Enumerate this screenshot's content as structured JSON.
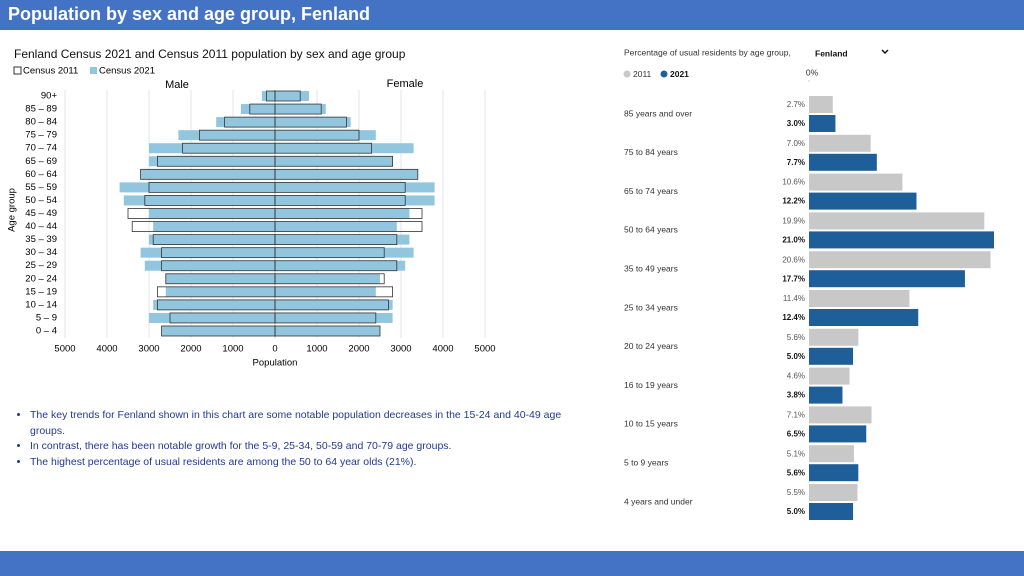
{
  "title": "Population by sex and age group, Fenland",
  "chart_data": [
    {
      "type": "pyramid",
      "title": "Fenland Census 2021 and Census 2011 population by sex and age group",
      "sides": [
        "Male",
        "Female"
      ],
      "categories": [
        "90+",
        "85 – 89",
        "80 – 84",
        "75 – 79",
        "70 – 74",
        "65 – 69",
        "60 – 64",
        "55 – 59",
        "50 – 54",
        "45 – 49",
        "40 – 44",
        "35 – 39",
        "30 – 34",
        "25 – 29",
        "20 – 24",
        "15 – 19",
        "10 – 14",
        "5 – 9",
        "0 – 4"
      ],
      "series": [
        {
          "name": "Census 2011",
          "color": "#333333",
          "male": [
            200,
            600,
            1200,
            1800,
            2200,
            2800,
            3200,
            3000,
            3100,
            3500,
            3400,
            2900,
            2700,
            2700,
            2600,
            2800,
            2800,
            2500,
            2700
          ],
          "female": [
            600,
            1100,
            1700,
            2000,
            2300,
            2800,
            3400,
            3100,
            3100,
            3500,
            3500,
            2900,
            2600,
            2900,
            2600,
            2800,
            2700,
            2400,
            2500
          ]
        },
        {
          "name": "Census 2021",
          "color": "#92c5de",
          "male": [
            310,
            810,
            1400,
            2300,
            3000,
            3000,
            3200,
            3700,
            3600,
            3000,
            2900,
            3000,
            3200,
            3100,
            2600,
            2600,
            2900,
            3000,
            2700
          ],
          "female": [
            810,
            1210,
            1800,
            2400,
            3300,
            2800,
            3400,
            3800,
            3800,
            3200,
            2900,
            3200,
            3300,
            3100,
            2500,
            2400,
            2800,
            2800,
            2500
          ]
        }
      ],
      "xlim": [
        0,
        5000
      ],
      "xticks": [
        0,
        1000,
        2000,
        3000,
        4000,
        5000
      ],
      "xlabel": "Population",
      "ylabel": "Age group",
      "grid": true
    },
    {
      "type": "hbar",
      "title": "Percentage of usual residents by age group,",
      "filter": "Fenland",
      "categories": [
        "85 years and over",
        "75 to 84 years",
        "65 to 74 years",
        "50 to 64 years",
        "35 to 49 years",
        "25 to 34 years",
        "20 to 24 years",
        "16 to 19 years",
        "10 to 15 years",
        "5 to 9 years",
        "4 years and under"
      ],
      "series": [
        {
          "name": "2011",
          "color": "#c8c8c8",
          "values": [
            2.7,
            7.0,
            10.6,
            19.9,
            20.6,
            11.4,
            5.6,
            4.6,
            7.1,
            5.1,
            5.5
          ],
          "value_labels": [
            "2.7%",
            "7.0%",
            "10.6%",
            "19.9%",
            "20.6%",
            "11.4%",
            "5.6%",
            "4.6%",
            "7.1%",
            "5.1%",
            "5.5%"
          ]
        },
        {
          "name": "2021",
          "color": "#1f5f99",
          "values": [
            3.0,
            7.7,
            12.2,
            21.0,
            17.7,
            12.4,
            5.0,
            3.8,
            6.5,
            5.6,
            5.0
          ],
          "value_labels": [
            "3.0%",
            "7.7%",
            "12.2%",
            "21.0%",
            "17.7%",
            "12.4%",
            "5.0%",
            "3.8%",
            "6.5%",
            "5.6%",
            "5.0%"
          ]
        }
      ],
      "xlim": [
        0,
        21
      ],
      "xticks": [
        {
          "value": 0,
          "label": "0%"
        }
      ]
    }
  ],
  "bullets": [
    "The key trends for Fenland shown in this chart are some notable population decreases in the 15-24 and 40-49 age groups.",
    "In contrast, there has been notable growth for the 5-9, 25-34, 50-59 and 70-79 age groups.",
    "The highest percentage of usual residents are among the 50 to 64 year olds (21%)."
  ]
}
